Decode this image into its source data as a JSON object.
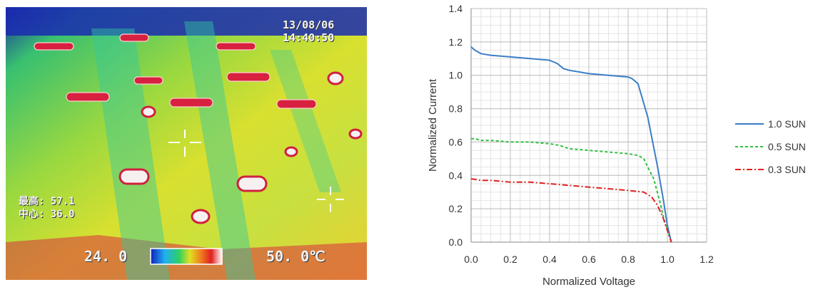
{
  "thermal": {
    "date": "13/08/06",
    "time": "14:40:50",
    "max_label": "最高: 57.1",
    "center_label": "中心: 36.0",
    "scale_min": "24. 0",
    "scale_max": "50. 0℃",
    "colors": [
      "#1020c0",
      "#20b0f0",
      "#30d060",
      "#e0e020",
      "#f08020",
      "#e02020",
      "#ffffff"
    ]
  },
  "chart_data": {
    "type": "line",
    "xlabel": "Normalized Voltage",
    "ylabel": "Normalized Current",
    "xlim": [
      0,
      1.2
    ],
    "ylim": [
      0,
      1.4
    ],
    "xticks": [
      "0.0",
      "0.2",
      "0.4",
      "0.6",
      "0.8",
      "1.0",
      "1.2"
    ],
    "yticks": [
      "0.0",
      "0.2",
      "0.4",
      "0.6",
      "0.8",
      "1.0",
      "1.2",
      "1.4"
    ],
    "grid": true,
    "legend": "right",
    "series": [
      {
        "name": "1.0 SUN",
        "color": "#3b7ec8",
        "dash": "",
        "x": [
          0,
          0.02,
          0.05,
          0.1,
          0.2,
          0.3,
          0.4,
          0.44,
          0.47,
          0.5,
          0.55,
          0.6,
          0.7,
          0.8,
          0.82,
          0.85,
          0.9,
          0.95,
          0.98,
          1.0,
          1.02
        ],
        "y": [
          1.17,
          1.15,
          1.13,
          1.12,
          1.11,
          1.1,
          1.09,
          1.07,
          1.04,
          1.03,
          1.02,
          1.01,
          1.0,
          0.99,
          0.98,
          0.95,
          0.75,
          0.45,
          0.25,
          0.1,
          0.0
        ]
      },
      {
        "name": "0.5 SUN",
        "color": "#2fbf3f",
        "dash": "4,3",
        "x": [
          0,
          0.02,
          0.05,
          0.1,
          0.2,
          0.3,
          0.4,
          0.45,
          0.5,
          0.6,
          0.7,
          0.8,
          0.85,
          0.88,
          0.9,
          0.93,
          0.96,
          0.98,
          1.0,
          1.02
        ],
        "y": [
          0.62,
          0.62,
          0.61,
          0.61,
          0.6,
          0.6,
          0.59,
          0.58,
          0.56,
          0.55,
          0.54,
          0.53,
          0.52,
          0.5,
          0.45,
          0.38,
          0.25,
          0.15,
          0.07,
          0.0
        ]
      },
      {
        "name": "0.3 SUN",
        "color": "#e02020",
        "dash": "8,3,2,3",
        "x": [
          0,
          0.05,
          0.1,
          0.2,
          0.3,
          0.4,
          0.5,
          0.6,
          0.7,
          0.8,
          0.88,
          0.92,
          0.95,
          0.98,
          1.0,
          1.02
        ],
        "y": [
          0.38,
          0.37,
          0.37,
          0.36,
          0.36,
          0.35,
          0.34,
          0.33,
          0.32,
          0.31,
          0.3,
          0.27,
          0.22,
          0.14,
          0.07,
          0.0
        ]
      }
    ]
  }
}
